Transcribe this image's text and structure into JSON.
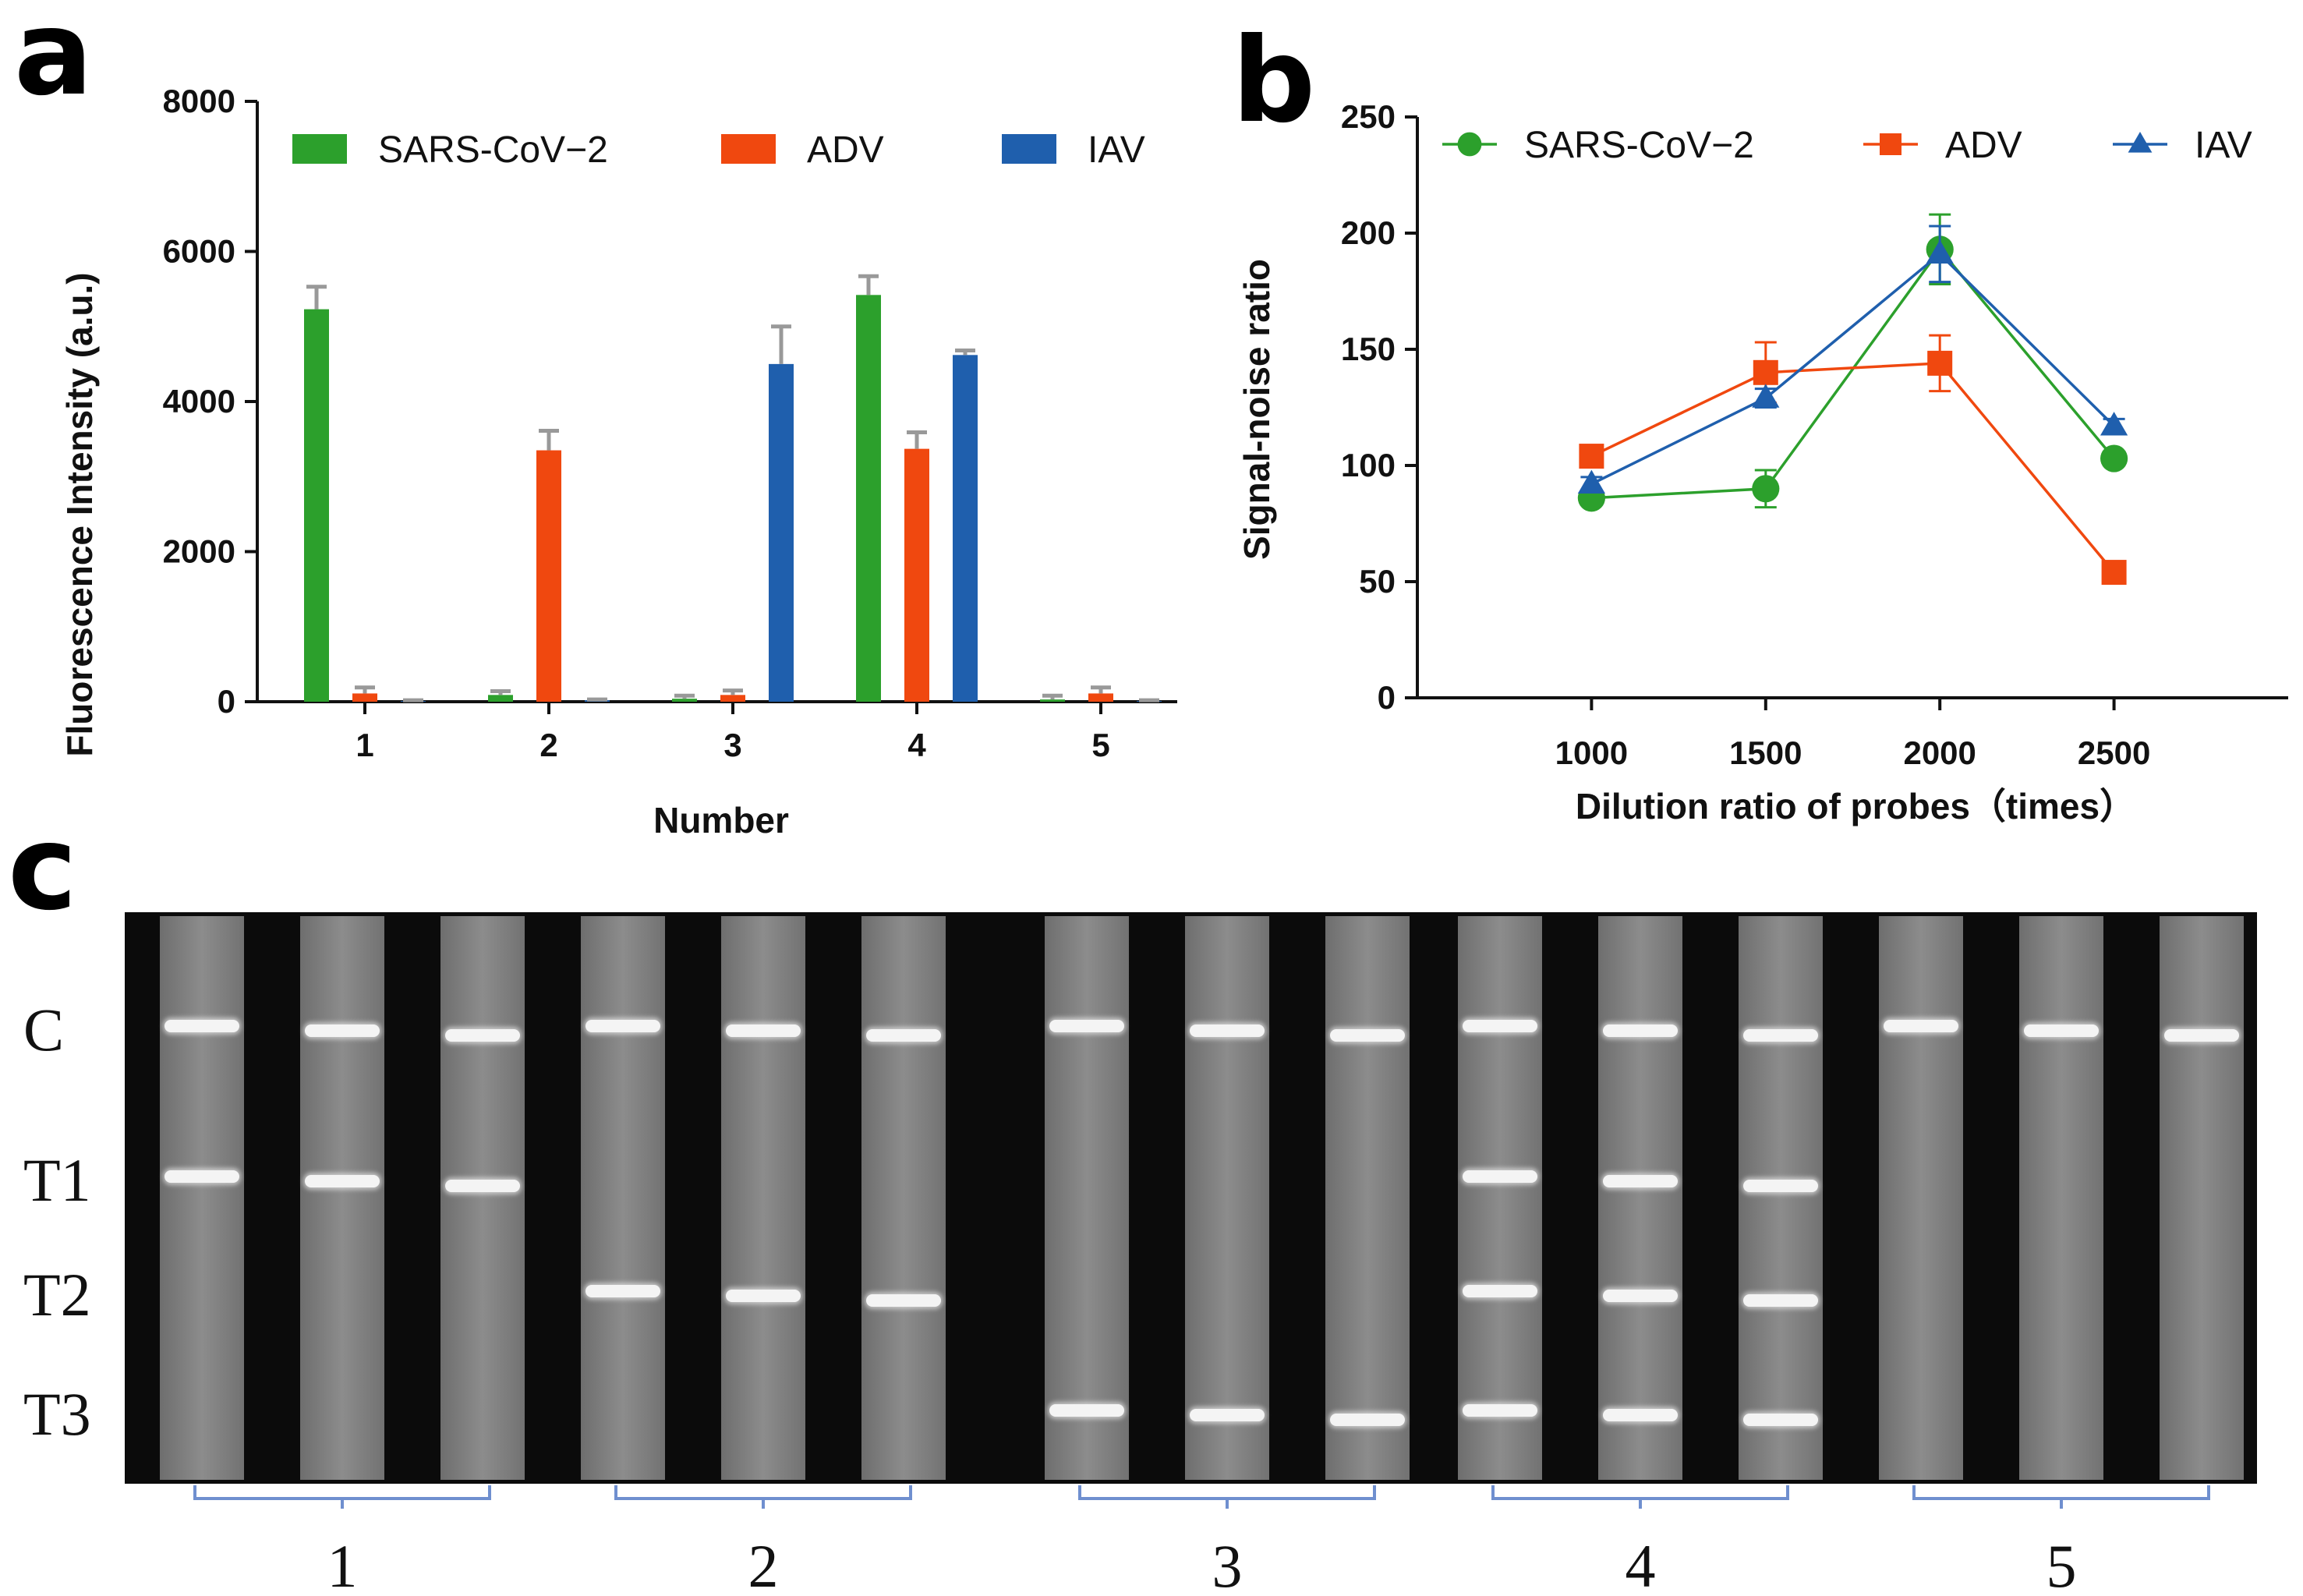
{
  "chart_data": [
    {
      "panel": "a",
      "type": "bar",
      "title": "",
      "xlabel": "Number",
      "ylabel": "Fluorescence Intensity (a.u.)",
      "ylim": [
        0,
        8000
      ],
      "yticks": [
        "0",
        "2000",
        "4000",
        "6000",
        "8000"
      ],
      "categories": [
        "1",
        "2",
        "3",
        "4",
        "5"
      ],
      "legend_position": "top",
      "series": [
        {
          "name": "SARS-CoV−2",
          "color": "#2ca02c",
          "values": [
            5230,
            90,
            40,
            5420,
            30
          ],
          "errors": [
            300,
            50,
            40,
            250,
            50
          ]
        },
        {
          "name": "ADV",
          "color": "#f0480f",
          "values": [
            110,
            3350,
            90,
            3370,
            110
          ],
          "errors": [
            80,
            260,
            60,
            220,
            80
          ]
        },
        {
          "name": "IAV",
          "color": "#1f5fad",
          "values": [
            10,
            20,
            4500,
            4620,
            10
          ],
          "errors": [
            10,
            10,
            500,
            60,
            10
          ]
        }
      ]
    },
    {
      "panel": "b",
      "type": "line",
      "title": "",
      "xlabel": "Dilution ratio of probes（times）",
      "ylabel": "Signal-noise ratio",
      "ylim": [
        0,
        250
      ],
      "yticks": [
        "0",
        "50",
        "100",
        "150",
        "200",
        "250"
      ],
      "x": [
        1000,
        1500,
        2000,
        2500
      ],
      "xticks": [
        "1000",
        "1500",
        "2000",
        "2500"
      ],
      "xlim": [
        500,
        3000
      ],
      "legend_position": "top",
      "series": [
        {
          "name": "SARS-CoV−2",
          "color": "#2ca02c",
          "marker": "circle",
          "values": [
            86,
            90,
            193,
            103
          ],
          "errors": [
            3,
            8,
            15,
            3
          ]
        },
        {
          "name": "ADV",
          "color": "#f0480f",
          "marker": "square",
          "values": [
            104,
            140,
            144,
            54
          ],
          "errors": [
            3,
            13,
            12,
            3
          ]
        },
        {
          "name": "IAV",
          "color": "#1f5fad",
          "marker": "triangle",
          "values": [
            92,
            129,
            191,
            117
          ],
          "errors": [
            3,
            4,
            12,
            3
          ]
        }
      ]
    }
  ],
  "panels": {
    "a": "a",
    "b": "b",
    "c": "c"
  },
  "strips": {
    "row_labels": [
      "C",
      "T1",
      "T2",
      "T3"
    ],
    "group_labels": [
      "1",
      "2",
      "3",
      "4",
      "5"
    ],
    "groups": [
      {
        "label": "1",
        "bands": [
          "C",
          "T1"
        ]
      },
      {
        "label": "2",
        "bands": [
          "C",
          "T2"
        ]
      },
      {
        "label": "3",
        "bands": [
          "C",
          "T3"
        ]
      },
      {
        "label": "4",
        "bands": [
          "C",
          "T1",
          "T2",
          "T3"
        ]
      },
      {
        "label": "5",
        "bands": [
          "C"
        ]
      }
    ]
  }
}
